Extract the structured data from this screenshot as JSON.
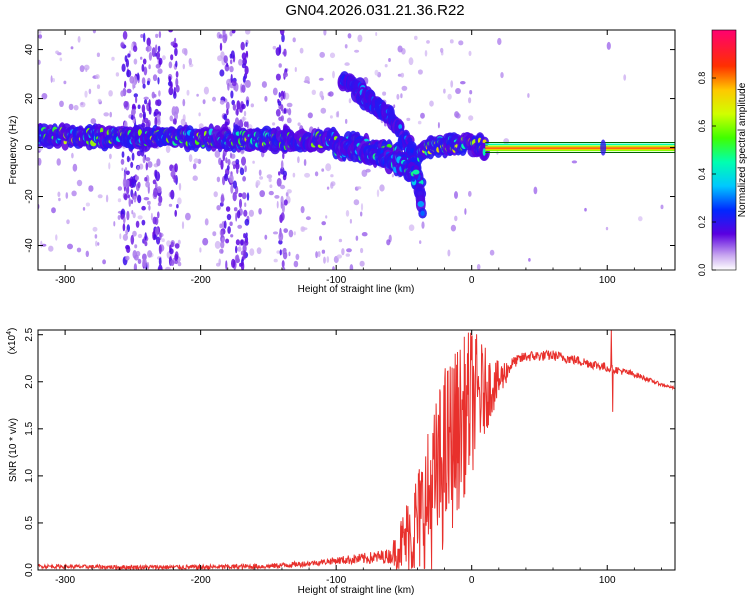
{
  "title": "GN04.2026.031.21.36.R22",
  "colors": {
    "snr_line": "#e8302c",
    "axis": "#000000",
    "carrier_outline": "#006400"
  },
  "chart_data": [
    {
      "type": "heatmap",
      "name": "spectrogram",
      "xlabel": "Height of straight line (km)",
      "ylabel": "Frequency (Hz)",
      "xlim": [
        -320,
        150
      ],
      "ylim": [
        -50,
        48
      ],
      "x_ticks": [
        -300,
        -200,
        -100,
        0,
        100
      ],
      "y_ticks": [
        -40,
        -20,
        0,
        20,
        40
      ],
      "colorbar": {
        "label": "Normalized spectral amplitude",
        "range": [
          0,
          1
        ],
        "ticks": [
          "0.0",
          "0.2",
          "0.4",
          "0.6",
          "0.8"
        ],
        "tick_values": [
          0,
          0.2,
          0.4,
          0.6,
          0.8
        ]
      },
      "ridges": [
        {
          "name": "main-carrier",
          "points": [
            [
              -320,
              5
            ],
            [
              -250,
              4
            ],
            [
              -200,
              4
            ],
            [
              -150,
              3
            ],
            [
              -110,
              3
            ],
            [
              -90,
              2
            ],
            [
              -70,
              -1
            ],
            [
              -55,
              -3
            ],
            [
              -45,
              -8
            ],
            [
              -38,
              -15
            ]
          ],
          "amplitude": 0.6
        },
        {
          "name": "upper-branch",
          "points": [
            [
              -95,
              28
            ],
            [
              -85,
              24
            ],
            [
              -75,
              19
            ],
            [
              -65,
              15
            ],
            [
              -55,
              8
            ],
            [
              -45,
              0
            ],
            [
              -40,
              -10
            ],
            [
              -37,
              -25
            ]
          ],
          "amplitude": 0.3
        },
        {
          "name": "lower-branch",
          "points": [
            [
              -100,
              0
            ],
            [
              -90,
              -1
            ],
            [
              -75,
              -2
            ],
            [
              -60,
              -5
            ],
            [
              -50,
              -8
            ],
            [
              -42,
              -12
            ]
          ],
          "amplitude": 0.45
        },
        {
          "name": "recovered-carrier",
          "points": [
            [
              -40,
              -2
            ],
            [
              -30,
              0
            ],
            [
              -20,
              1
            ],
            [
              -10,
              2
            ],
            [
              0,
              1
            ],
            [
              10,
              0.5
            ]
          ],
          "amplitude": 0.7
        },
        {
          "name": "stable-carrier",
          "points": [
            [
              10,
              0
            ],
            [
              50,
              0
            ],
            [
              100,
              0
            ],
            [
              150,
              0
            ]
          ],
          "amplitude": 0.85
        }
      ],
      "noise_columns_km": [
        -255,
        -248,
        -240,
        -232,
        -220,
        -182,
        -175,
        -168,
        -140
      ],
      "isolated_spot": {
        "x": 97,
        "y": 0
      }
    },
    {
      "type": "line",
      "name": "snr",
      "xlabel": "Height of straight line (km)",
      "ylabel": "SNR (10 * v/v)",
      "y_scale_label": "(x10",
      "y_scale_exp": "4",
      "y_scale_close": ")",
      "xlim": [
        -320,
        150
      ],
      "ylim": [
        0,
        2.55
      ],
      "x_ticks": [
        -300,
        -200,
        -100,
        0,
        100
      ],
      "y_ticks": [
        0,
        0.5,
        1,
        1.5,
        2,
        2.5
      ],
      "y_tick_labels": [
        "0.0",
        "0.5",
        "1.0",
        "1.5",
        "2.0",
        "2.5"
      ],
      "envelope": [
        [
          -320,
          0.04
        ],
        [
          -260,
          0.03
        ],
        [
          -200,
          0.03
        ],
        [
          -150,
          0.04
        ],
        [
          -120,
          0.07
        ],
        [
          -100,
          0.1
        ],
        [
          -80,
          0.12
        ],
        [
          -60,
          0.15
        ],
        [
          -50,
          0.3
        ],
        [
          -40,
          0.5
        ],
        [
          -30,
          0.8
        ],
        [
          -20,
          1.2
        ],
        [
          -10,
          1.5
        ],
        [
          0,
          1.8
        ],
        [
          10,
          1.9
        ],
        [
          20,
          2.0
        ],
        [
          30,
          2.2
        ],
        [
          40,
          2.27
        ],
        [
          60,
          2.28
        ],
        [
          80,
          2.22
        ],
        [
          100,
          2.15
        ],
        [
          120,
          2.08
        ],
        [
          140,
          1.97
        ],
        [
          150,
          1.93
        ]
      ],
      "noise_amplitude": [
        [
          -320,
          0.02
        ],
        [
          -110,
          0.03
        ],
        [
          -60,
          0.08
        ],
        [
          -45,
          0.5
        ],
        [
          -20,
          1.0
        ],
        [
          0,
          0.8
        ],
        [
          15,
          0.3
        ],
        [
          30,
          0.06
        ],
        [
          100,
          0.05
        ],
        [
          120,
          0.03
        ],
        [
          150,
          0.01
        ]
      ],
      "spikes": [
        {
          "x": 103,
          "y": 2.55
        },
        {
          "x": 104,
          "y": 1.68
        }
      ]
    }
  ]
}
